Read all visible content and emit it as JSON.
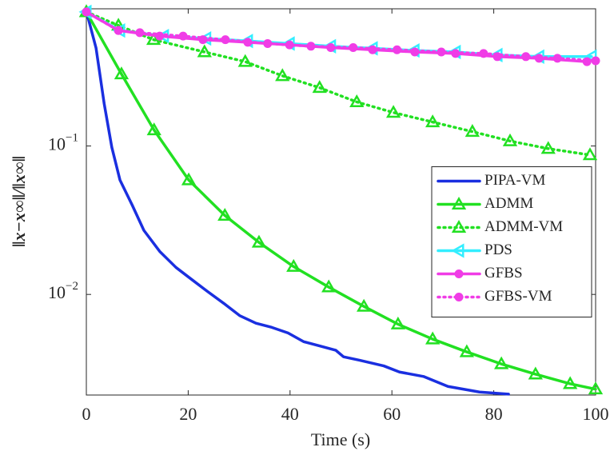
{
  "chart_data": {
    "type": "line",
    "x_label": "Time (s)",
    "y_label": "‖x−x∞‖/‖x∞‖",
    "xlim": [
      0,
      100
    ],
    "xticks": [
      0,
      20,
      40,
      60,
      80,
      100
    ],
    "ylim": [
      0.0021,
      0.84
    ],
    "log_y": true,
    "yticks": [
      {
        "value": 0.1,
        "label": "10",
        "exponent": "−1"
      },
      {
        "value": 0.01,
        "label": "10",
        "exponent": "−2"
      }
    ],
    "grid": false,
    "legend": "right",
    "series": [
      {
        "name": "PIPA-VM",
        "color": "#1a2fe0",
        "style": "solid",
        "marker": "none",
        "x": [
          0,
          1.9,
          3.5,
          5,
          6.6,
          9,
          11.3,
          14.4,
          17.6,
          20.7,
          23.9,
          27,
          30.1,
          33.3,
          36.4,
          39.6,
          42.7,
          45.8,
          49,
          50.5,
          53.7,
          58.4,
          61.5,
          66.2,
          71,
          77.2,
          82.9
        ],
        "values": [
          0.81,
          0.458,
          0.193,
          0.098,
          0.059,
          0.04,
          0.027,
          0.0195,
          0.0152,
          0.0126,
          0.0104,
          0.0087,
          0.0072,
          0.0064,
          0.006,
          0.0055,
          0.0048,
          0.0045,
          0.0042,
          0.0038,
          0.0036,
          0.0033,
          0.003,
          0.0028,
          0.0024,
          0.0022,
          0.00213
        ]
      },
      {
        "name": "ADMM",
        "color": "#22e022",
        "style": "solid",
        "marker": "triangle-up",
        "x": [
          0,
          6.9,
          13.3,
          20.1,
          27.2,
          33.9,
          40.7,
          47.6,
          54.5,
          61.2,
          68,
          74.7,
          81.5,
          88.2,
          95,
          100
        ],
        "values": [
          0.8,
          0.305,
          0.128,
          0.059,
          0.034,
          0.0224,
          0.0154,
          0.0112,
          0.0083,
          0.0063,
          0.005,
          0.0041,
          0.0034,
          0.0029,
          0.0025,
          0.0023
        ]
      },
      {
        "name": "ADMM-VM",
        "color": "#22e022",
        "style": "dotted",
        "marker": "triangle-up",
        "x": [
          0,
          6.3,
          13.2,
          23.2,
          31.2,
          38.5,
          45.8,
          53.1,
          60.3,
          68,
          75.8,
          83.2,
          90.7,
          98.9
        ],
        "values": [
          0.8,
          0.649,
          0.52,
          0.43,
          0.37,
          0.297,
          0.247,
          0.198,
          0.168,
          0.145,
          0.125,
          0.108,
          0.096,
          0.087
        ]
      },
      {
        "name": "PDS",
        "color": "#33eeff",
        "style": "solid",
        "marker": "triangle-left",
        "x": [
          0,
          6.6,
          15.2,
          23.5,
          31.7,
          39.9,
          48,
          56.2,
          64.4,
          72.5,
          80.7,
          88.9,
          99.2
        ],
        "values": [
          0.8,
          0.6,
          0.55,
          0.53,
          0.51,
          0.49,
          0.47,
          0.455,
          0.44,
          0.43,
          0.41,
          0.4,
          0.4
        ]
      },
      {
        "name": "GFBS",
        "color": "#f03ce6",
        "style": "solid",
        "marker": "circle",
        "x": [
          0,
          6.3,
          14.4,
          22.9,
          31.7,
          39.9,
          48,
          56.2,
          64.5,
          72.5,
          80.7,
          88.9,
          98.3
        ],
        "values": [
          0.8,
          0.6,
          0.55,
          0.52,
          0.5,
          0.48,
          0.46,
          0.445,
          0.43,
          0.42,
          0.4,
          0.39,
          0.37
        ]
      },
      {
        "name": "GFBS-VM",
        "color": "#f03ce6",
        "style": "dotted",
        "marker": "circle",
        "x": [
          0,
          6.3,
          10.5,
          19,
          27.3,
          35.6,
          44.1,
          52.4,
          61,
          69.7,
          78,
          86.3,
          92.5,
          100
        ],
        "values": [
          0.8,
          0.6,
          0.58,
          0.55,
          0.52,
          0.49,
          0.47,
          0.46,
          0.445,
          0.43,
          0.42,
          0.4,
          0.39,
          0.375
        ]
      }
    ]
  }
}
